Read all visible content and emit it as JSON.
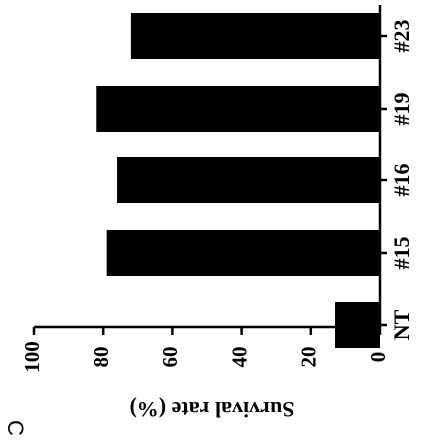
{
  "panel_label": "C",
  "chart_data": {
    "type": "bar",
    "orientation": "horizontal",
    "rotated_figure": true,
    "categories": [
      "NT",
      "#15",
      "#16",
      "#19",
      "#23"
    ],
    "values": [
      13,
      79,
      76,
      82,
      72
    ],
    "title": "",
    "xlabel": "",
    "ylabel": "Survival rate (%)",
    "ylim": [
      0,
      100
    ],
    "ticks": [
      0,
      20,
      40,
      60,
      80,
      100
    ],
    "tick_labels": [
      "0",
      "20",
      "40",
      "60",
      "80",
      "100"
    ],
    "grid": false,
    "legend": "none",
    "bar_color": "#000000",
    "axis_color": "#000000"
  }
}
